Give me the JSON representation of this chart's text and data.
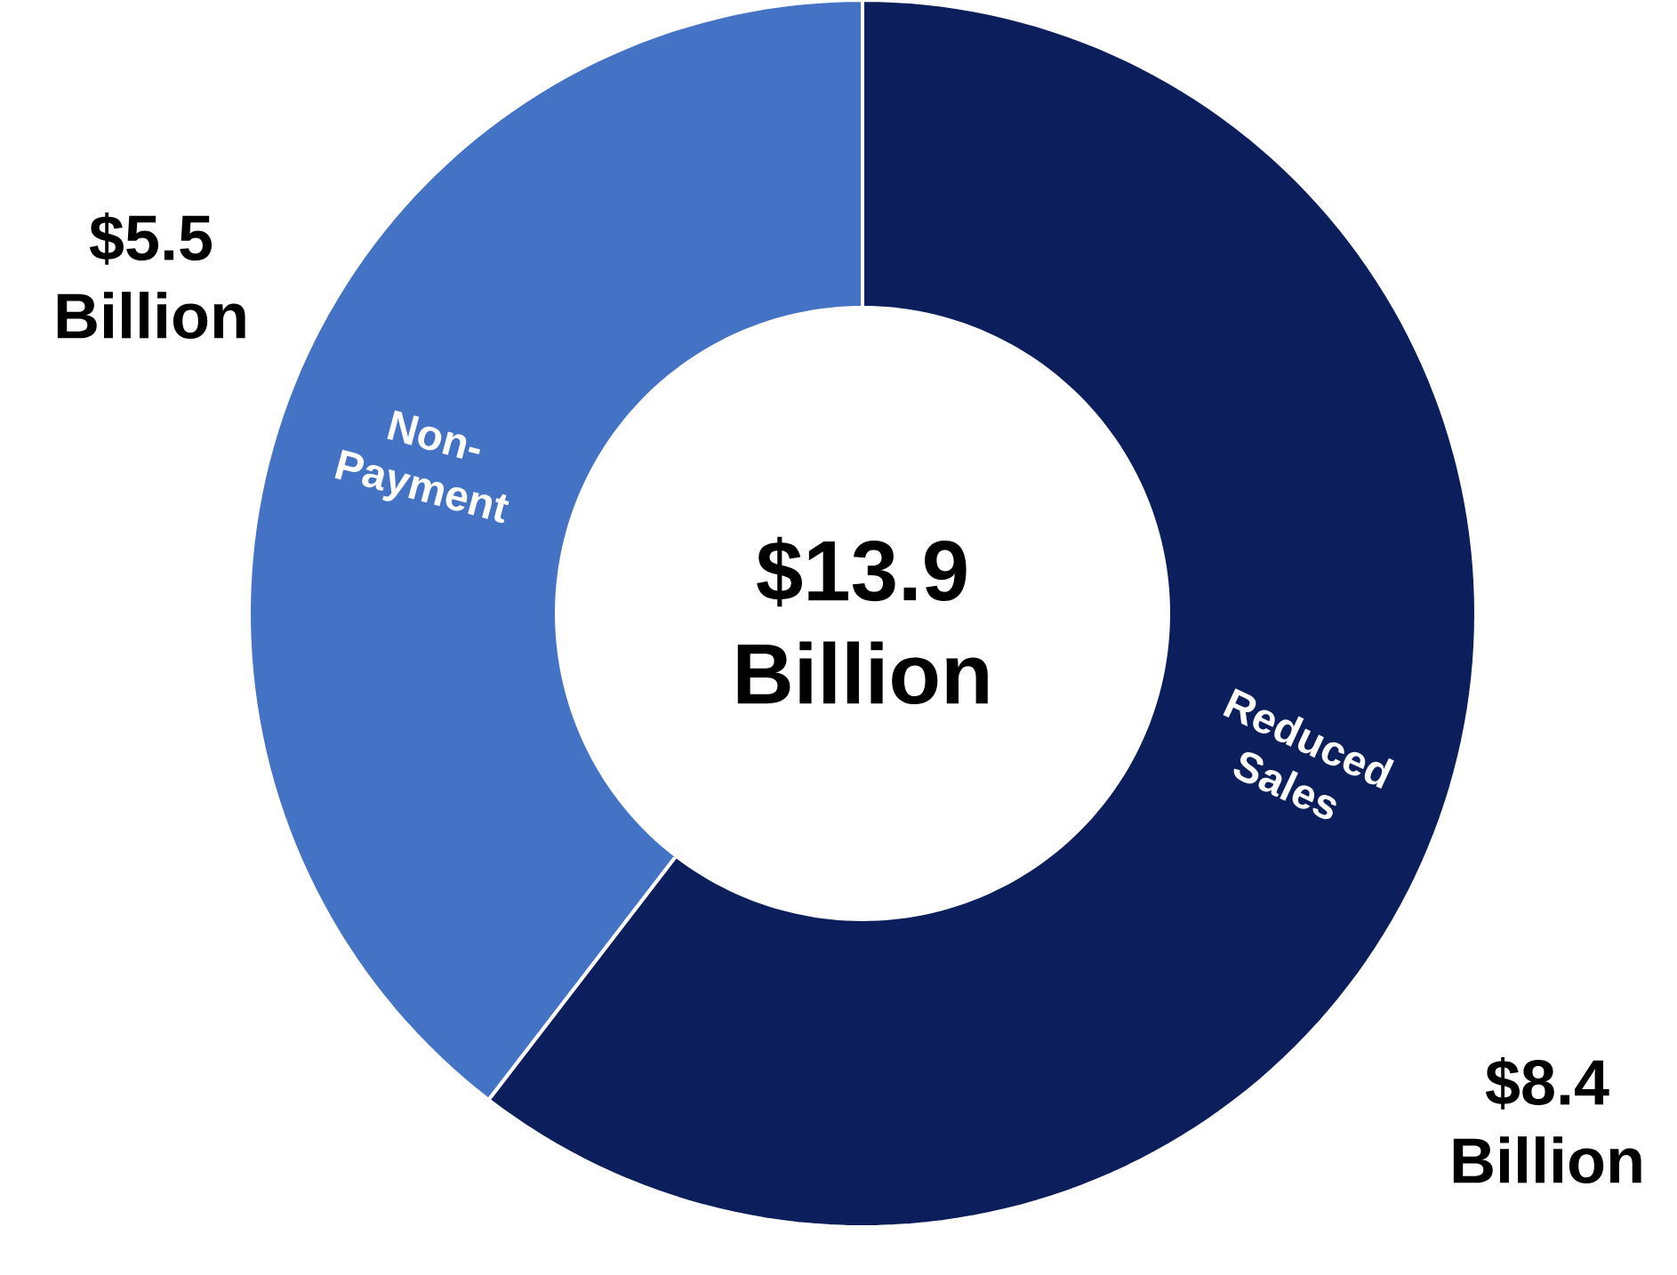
{
  "chart_data": {
    "type": "donut",
    "categories": [
      "Reduced Sales",
      "Non-Payment"
    ],
    "values": [
      8.4,
      5.5
    ],
    "colors": [
      "#0c1f5c",
      "#4472c4"
    ],
    "value_labels": [
      "$8.4 Billion",
      "$5.5 Billion"
    ],
    "annotations": [
      "$13.9 Billion"
    ]
  }
}
